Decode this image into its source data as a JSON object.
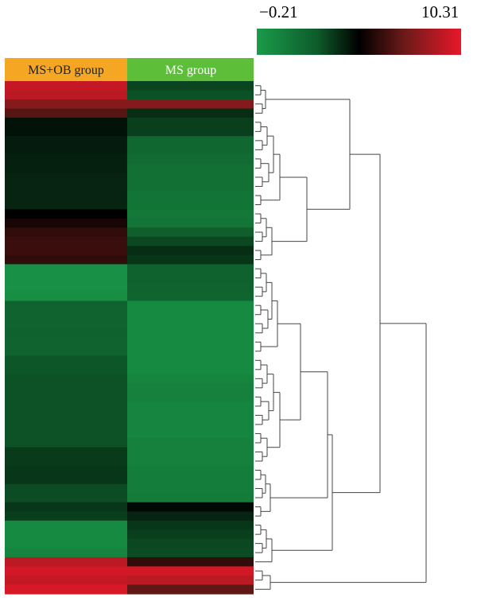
{
  "chart_data": {
    "type": "heatmap",
    "columns": [
      {
        "label": "MS+OB group",
        "header_color": "#f5a623"
      },
      {
        "label": "MS group",
        "header_color": "#5dbe3a"
      }
    ],
    "colorscale": {
      "min": -0.21,
      "max": 10.31,
      "min_label": "−0.21",
      "max_label": "10.31",
      "stops": [
        "#1a9b4a",
        "#0e5a2a",
        "#000000",
        "#6a1a18",
        "#e8182a"
      ]
    },
    "rows": [
      [
        0.92,
        0.35
      ],
      [
        0.9,
        0.32
      ],
      [
        0.78,
        0.78
      ],
      [
        0.68,
        0.4
      ],
      [
        0.46,
        0.36
      ],
      [
        0.46,
        0.36
      ],
      [
        0.44,
        0.24
      ],
      [
        0.44,
        0.24
      ],
      [
        0.43,
        0.22
      ],
      [
        0.43,
        0.2
      ],
      [
        0.42,
        0.2
      ],
      [
        0.42,
        0.2
      ],
      [
        0.42,
        0.18
      ],
      [
        0.42,
        0.18
      ],
      [
        0.5,
        0.16
      ],
      [
        0.55,
        0.18
      ],
      [
        0.6,
        0.28
      ],
      [
        0.62,
        0.34
      ],
      [
        0.62,
        0.4
      ],
      [
        0.6,
        0.38
      ],
      [
        0.05,
        0.27
      ],
      [
        0.05,
        0.27
      ],
      [
        0.05,
        0.26
      ],
      [
        0.06,
        0.25
      ],
      [
        0.26,
        0.08
      ],
      [
        0.26,
        0.08
      ],
      [
        0.26,
        0.08
      ],
      [
        0.27,
        0.08
      ],
      [
        0.26,
        0.08
      ],
      [
        0.26,
        0.08
      ],
      [
        0.31,
        0.08
      ],
      [
        0.31,
        0.08
      ],
      [
        0.32,
        0.1
      ],
      [
        0.32,
        0.12
      ],
      [
        0.32,
        0.12
      ],
      [
        0.32,
        0.1
      ],
      [
        0.32,
        0.1
      ],
      [
        0.32,
        0.1
      ],
      [
        0.32,
        0.1
      ],
      [
        0.32,
        0.12
      ],
      [
        0.37,
        0.12
      ],
      [
        0.37,
        0.12
      ],
      [
        0.38,
        0.14
      ],
      [
        0.38,
        0.14
      ],
      [
        0.33,
        0.14
      ],
      [
        0.33,
        0.15
      ],
      [
        0.38,
        0.48
      ],
      [
        0.36,
        0.42
      ],
      [
        0.08,
        0.38
      ],
      [
        0.08,
        0.36
      ],
      [
        0.08,
        0.34
      ],
      [
        0.1,
        0.33
      ],
      [
        0.9,
        0.6
      ],
      [
        0.95,
        0.95
      ],
      [
        0.92,
        0.9
      ],
      [
        0.96,
        0.7
      ]
    ]
  }
}
